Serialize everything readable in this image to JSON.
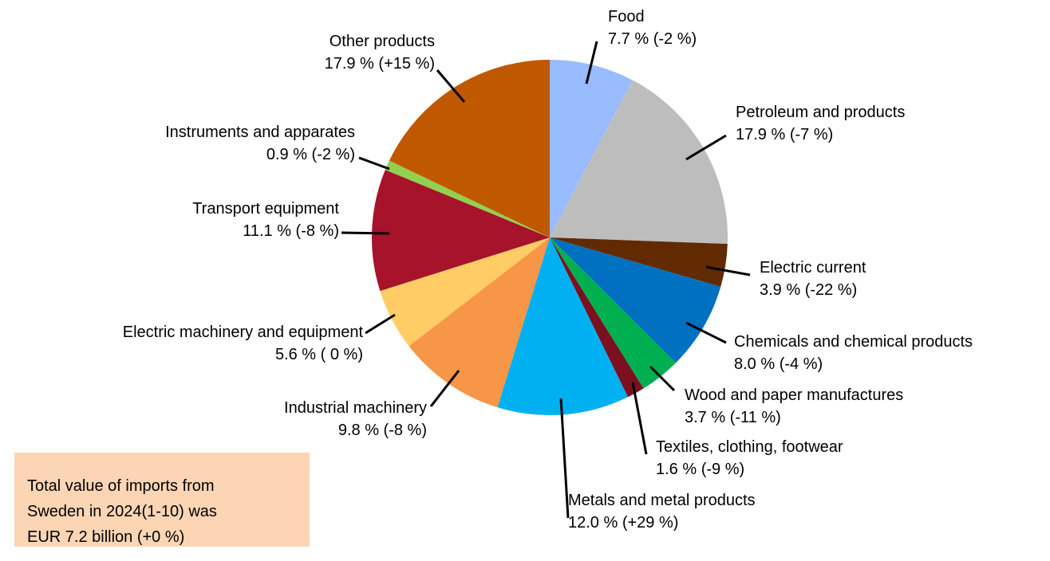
{
  "chart_data": {
    "type": "pie",
    "categories": [
      "Food",
      "Petroleum and products",
      "Electric current",
      "Chemicals and chemical products",
      "Wood and paper manufactures",
      "Textiles, clothing, footwear",
      "Metals and metal products",
      "Industrial machinery",
      "Electric machinery and equipment",
      "Transport equipment",
      "Instruments and apparates",
      "Other products"
    ],
    "values": [
      7.7,
      17.9,
      3.9,
      8.0,
      3.7,
      1.6,
      12.0,
      9.8,
      5.6,
      11.1,
      0.9,
      17.9
    ],
    "value_labels": [
      "7.7 %",
      "17.9 %",
      "3.9 %",
      "8.0 %",
      "3.7 %",
      "1.6 %",
      "12.0 %",
      "9.8 %",
      "5.6 %",
      "11.1 %",
      "0.9 %",
      "17.9 %"
    ],
    "changes": [
      "(-2 %)",
      "(-7 %)",
      "(-22 %)",
      "(-4 %)",
      "(-11 %)",
      "(-9 %)",
      "(+29 %)",
      "(-8 %)",
      "( 0 %)",
      "(-8 %)",
      "(-2 %)",
      "(+15 %)"
    ],
    "colors": [
      "#99bbff",
      "#bdbdbd",
      "#612a00",
      "#0070c0",
      "#00b050",
      "#7b1020",
      "#00b0f0",
      "#f79646",
      "#ffcc66",
      "#a6132b",
      "#92d050",
      "#c05800"
    ],
    "note": [
      "Total value of imports from",
      "Sweden in 2024(1-10) was",
      "EUR 7.2 billion (+0 %)"
    ]
  }
}
